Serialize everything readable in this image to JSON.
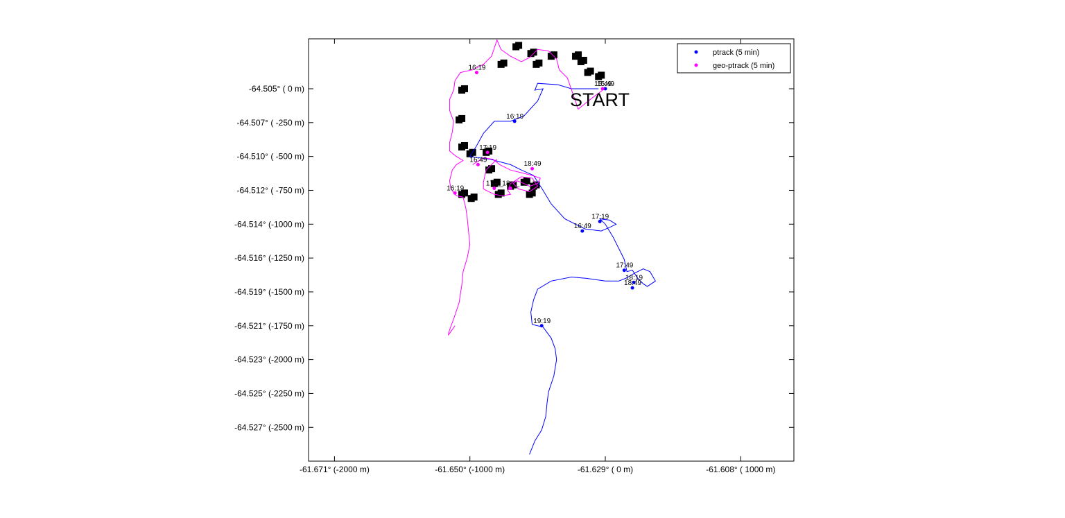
{
  "chart_data": {
    "type": "scatter",
    "title": "",
    "xlabel": "",
    "ylabel": "",
    "xlim": [
      -2100,
      1400
    ],
    "ylim": [
      -2770,
      360
    ],
    "grid": false,
    "legend_placement": "top-right",
    "x_ticks": [
      {
        "value": -2000,
        "label": "-61.671° (-2000 m)"
      },
      {
        "value": -1000,
        "label": "-61.650° (-1000 m)"
      },
      {
        "value": 0,
        "label": "-61.629° (    0 m)"
      },
      {
        "value": 1000,
        "label": "-61.608° ( 1000 m)"
      }
    ],
    "y_ticks": [
      {
        "value": 0,
        "label": "-64.505° (    0 m)"
      },
      {
        "value": -250,
        "label": "-64.507° ( -250 m)"
      },
      {
        "value": -500,
        "label": "-64.510° ( -500 m)"
      },
      {
        "value": -750,
        "label": "-64.512° ( -750 m)"
      },
      {
        "value": -1000,
        "label": "-64.514° (-1000 m)"
      },
      {
        "value": -1250,
        "label": "-64.516° (-1250 m)"
      },
      {
        "value": -1500,
        "label": "-64.519° (-1500 m)"
      },
      {
        "value": -1750,
        "label": "-64.521° (-1750 m)"
      },
      {
        "value": -2000,
        "label": "-64.523° (-2000 m)"
      },
      {
        "value": -2250,
        "label": "-64.525° (-2250 m)"
      },
      {
        "value": -2500,
        "label": "-64.527° (-2500 m)"
      }
    ],
    "annotation": {
      "text": "START",
      "x": -250,
      "y": -80
    },
    "colors": {
      "ptrack": "#0000ff",
      "geo": "#ff00ff",
      "boxes": "#000000"
    },
    "series": [
      {
        "name": "ptrack (5 min)",
        "color": "#0000ff",
        "path": [
          [
            -50,
            0
          ],
          [
            -250,
            0
          ],
          [
            -350,
            30
          ],
          [
            -500,
            40
          ],
          [
            -520,
            -10
          ],
          [
            -460,
            0
          ],
          [
            -500,
            -90
          ],
          [
            -600,
            -200
          ],
          [
            -700,
            -240
          ],
          [
            -820,
            -240
          ],
          [
            -900,
            -330
          ],
          [
            -950,
            -420
          ],
          [
            -1000,
            -500
          ],
          [
            -850,
            -520
          ],
          [
            -700,
            -560
          ],
          [
            -620,
            -600
          ],
          [
            -530,
            -640
          ],
          [
            -460,
            -750
          ],
          [
            -400,
            -850
          ],
          [
            -300,
            -960
          ],
          [
            -150,
            -1035
          ],
          [
            -30,
            -1050
          ],
          [
            40,
            -1020
          ],
          [
            80,
            -1000
          ],
          [
            30,
            -970
          ],
          [
            -40,
            -960
          ],
          [
            0,
            -1000
          ],
          [
            60,
            -1100
          ],
          [
            140,
            -1260
          ],
          [
            160,
            -1350
          ],
          [
            200,
            -1340
          ],
          [
            240,
            -1400
          ],
          [
            280,
            -1440
          ],
          [
            310,
            -1460
          ],
          [
            370,
            -1420
          ],
          [
            330,
            -1350
          ],
          [
            280,
            -1330
          ],
          [
            220,
            -1360
          ],
          [
            150,
            -1400
          ],
          [
            100,
            -1420
          ],
          [
            0,
            -1420
          ],
          [
            -140,
            -1400
          ],
          [
            -250,
            -1390
          ],
          [
            -400,
            -1420
          ],
          [
            -500,
            -1480
          ],
          [
            -530,
            -1560
          ],
          [
            -550,
            -1650
          ],
          [
            -540,
            -1740
          ],
          [
            -460,
            -1760
          ],
          [
            -400,
            -1840
          ],
          [
            -370,
            -1920
          ],
          [
            -360,
            -2000
          ],
          [
            -380,
            -2120
          ],
          [
            -420,
            -2240
          ],
          [
            -430,
            -2320
          ],
          [
            -440,
            -2420
          ],
          [
            -470,
            -2520
          ],
          [
            -520,
            -2600
          ],
          [
            -560,
            -2700
          ]
        ],
        "markers": [
          {
            "x": 0,
            "y": 0,
            "time": "15:49"
          },
          {
            "x": -670,
            "y": -240,
            "time": "16:19"
          },
          {
            "x": -170,
            "y": -1050,
            "time": "16:49"
          },
          {
            "x": -40,
            "y": -980,
            "time": "17:19"
          },
          {
            "x": 140,
            "y": -1340,
            "time": "17:49"
          },
          {
            "x": 210,
            "y": -1430,
            "time": "18:19"
          },
          {
            "x": 200,
            "y": -1470,
            "time": "18:49"
          },
          {
            "x": -470,
            "y": -1750,
            "time": "19:19"
          }
        ]
      },
      {
        "name": "geo-ptrack (5 min)",
        "color": "#ff00ff",
        "path": [
          [
            -20,
            -10
          ],
          [
            -100,
            -70
          ],
          [
            -150,
            -110
          ],
          [
            -200,
            -150
          ],
          [
            -280,
            80
          ],
          [
            -340,
            140
          ],
          [
            -360,
            220
          ],
          [
            -420,
            280
          ],
          [
            -500,
            290
          ],
          [
            -560,
            230
          ],
          [
            -620,
            200
          ],
          [
            -700,
            240
          ],
          [
            -770,
            290
          ],
          [
            -800,
            360
          ],
          [
            -840,
            240
          ],
          [
            -900,
            180
          ],
          [
            -980,
            140
          ],
          [
            -1070,
            120
          ],
          [
            -1110,
            60
          ],
          [
            -1120,
            -10
          ],
          [
            -1150,
            -80
          ],
          [
            -1150,
            -160
          ],
          [
            -1120,
            -240
          ],
          [
            -1130,
            -320
          ],
          [
            -1150,
            -400
          ],
          [
            -1150,
            -460
          ],
          [
            -1100,
            -500
          ],
          [
            -1050,
            -530
          ],
          [
            -1100,
            -560
          ],
          [
            -1130,
            -600
          ],
          [
            -1150,
            -680
          ],
          [
            -1140,
            -740
          ],
          [
            -1100,
            -790
          ],
          [
            -1050,
            -800
          ],
          [
            -1030,
            -880
          ],
          [
            -1020,
            -950
          ],
          [
            -1010,
            -1050
          ],
          [
            -1000,
            -1150
          ],
          [
            -1020,
            -1250
          ],
          [
            -1050,
            -1350
          ],
          [
            -1060,
            -1450
          ],
          [
            -1080,
            -1580
          ],
          [
            -1120,
            -1700
          ],
          [
            -1150,
            -1780
          ],
          [
            -1160,
            -1820
          ],
          [
            -1110,
            -1750
          ]
        ],
        "path2": [
          [
            -980,
            -560
          ],
          [
            -900,
            -510
          ],
          [
            -830,
            -520
          ],
          [
            -780,
            -560
          ],
          [
            -700,
            -600
          ],
          [
            -620,
            -620
          ],
          [
            -540,
            -640
          ],
          [
            -480,
            -660
          ],
          [
            -500,
            -700
          ],
          [
            -560,
            -720
          ],
          [
            -600,
            -700
          ],
          [
            -650,
            -680
          ],
          [
            -680,
            -700
          ],
          [
            -640,
            -740
          ],
          [
            -560,
            -760
          ],
          [
            -500,
            -720
          ],
          [
            -540,
            -660
          ],
          [
            -620,
            -650
          ],
          [
            -700,
            -700
          ],
          [
            -720,
            -750
          ],
          [
            -700,
            -780
          ],
          [
            -760,
            -790
          ],
          [
            -820,
            -780
          ],
          [
            -860,
            -760
          ],
          [
            -900,
            -740
          ],
          [
            -900,
            -690
          ],
          [
            -880,
            -600
          ],
          [
            -840,
            -560
          ],
          [
            -800,
            -520
          ]
        ],
        "markers": [
          {
            "x": -20,
            "y": 0,
            "time": "15:49"
          },
          {
            "x": -950,
            "y": 120,
            "time": "16:19"
          },
          {
            "x": -940,
            "y": -560,
            "time": "16:49"
          },
          {
            "x": -870,
            "y": -470,
            "time": "17:19"
          },
          {
            "x": -540,
            "y": -590,
            "time": "18:49"
          },
          {
            "x": -820,
            "y": -735,
            "time": "17:__"
          },
          {
            "x": -700,
            "y": -735,
            "time": "18:__"
          },
          {
            "x": -1110,
            "y": -770,
            "time": "16:19"
          }
        ]
      }
    ],
    "boxes": [
      [
        -660,
        310
      ],
      [
        -550,
        260
      ],
      [
        -510,
        180
      ],
      [
        -400,
        240
      ],
      [
        -220,
        240
      ],
      [
        -180,
        200
      ],
      [
        -130,
        120
      ],
      [
        -50,
        90
      ],
      [
        -770,
        180
      ],
      [
        -1060,
        -10
      ],
      [
        -1080,
        -230
      ],
      [
        -1060,
        -430
      ],
      [
        -1000,
        -480
      ],
      [
        -880,
        -470
      ],
      [
        -860,
        -600
      ],
      [
        -820,
        -700
      ],
      [
        -790,
        -780
      ],
      [
        -700,
        -720
      ],
      [
        -600,
        -690
      ],
      [
        -560,
        -780
      ],
      [
        -530,
        -720
      ],
      [
        -1060,
        -780
      ],
      [
        -990,
        -810
      ]
    ]
  }
}
